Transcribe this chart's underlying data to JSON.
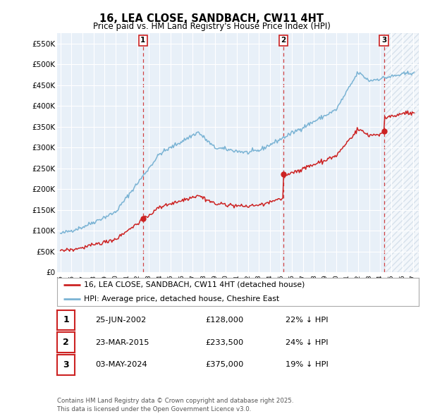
{
  "title": "16, LEA CLOSE, SANDBACH, CW11 4HT",
  "subtitle": "Price paid vs. HM Land Registry's House Price Index (HPI)",
  "ylim": [
    0,
    575000
  ],
  "yticks": [
    0,
    50000,
    100000,
    150000,
    200000,
    250000,
    300000,
    350000,
    400000,
    450000,
    500000,
    550000
  ],
  "ytick_labels": [
    "£0",
    "£50K",
    "£100K",
    "£150K",
    "£200K",
    "£250K",
    "£300K",
    "£350K",
    "£400K",
    "£450K",
    "£500K",
    "£550K"
  ],
  "hpi_color": "#7ab3d4",
  "price_color": "#cc2222",
  "vline_color": "#cc2222",
  "sales": [
    {
      "date_num": 2002.49,
      "price": 128000,
      "label": "1"
    },
    {
      "date_num": 2015.23,
      "price": 233500,
      "label": "2"
    },
    {
      "date_num": 2024.34,
      "price": 375000,
      "label": "3"
    }
  ],
  "legend_entries": [
    {
      "label": "16, LEA CLOSE, SANDBACH, CW11 4HT (detached house)",
      "color": "#cc2222"
    },
    {
      "label": "HPI: Average price, detached house, Cheshire East",
      "color": "#7ab3d4"
    }
  ],
  "table_rows": [
    {
      "num": "1",
      "date": "25-JUN-2002",
      "price": "£128,000",
      "hpi": "22% ↓ HPI"
    },
    {
      "num": "2",
      "date": "23-MAR-2015",
      "price": "£233,500",
      "hpi": "24% ↓ HPI"
    },
    {
      "num": "3",
      "date": "03-MAY-2024",
      "price": "£375,000",
      "hpi": "19% ↓ HPI"
    }
  ],
  "footnote": "Contains HM Land Registry data © Crown copyright and database right 2025.\nThis data is licensed under the Open Government Licence v3.0.",
  "background_color": "#ffffff",
  "plot_bg_color": "#e8f0f8",
  "grid_color": "#ffffff"
}
